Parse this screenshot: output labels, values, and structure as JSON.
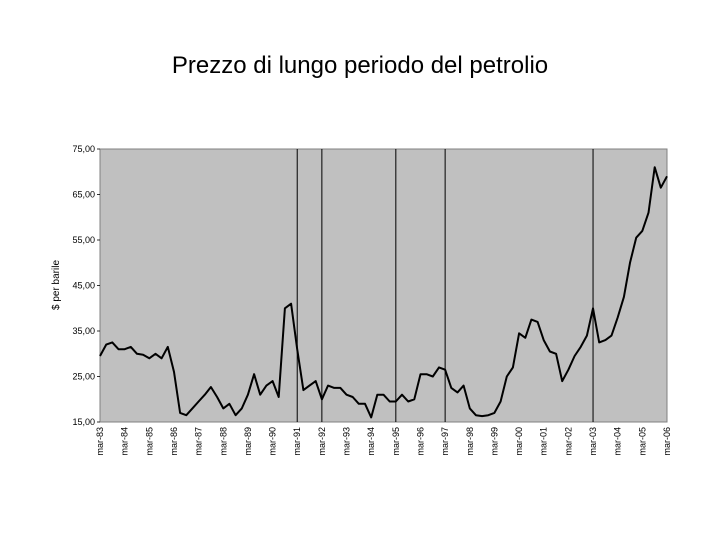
{
  "title": "Prezzo di lungo periodo del petrolio",
  "chart_data": {
    "type": "line",
    "ylabel": "$ per barile",
    "ylim": [
      15,
      75
    ],
    "yticks": [
      "15,00",
      "25,00",
      "35,00",
      "45,00",
      "55,00",
      "65,00",
      "75,00"
    ],
    "x_labels": [
      "mar-83",
      "mar-84",
      "mar-85",
      "mar-86",
      "mar-87",
      "mar-88",
      "mar-89",
      "mar-90",
      "mar-91",
      "mar-92",
      "mar-93",
      "mar-94",
      "mar-95",
      "mar-96",
      "mar-97",
      "mar-98",
      "mar-99",
      "mar-00",
      "mar-01",
      "mar-02",
      "mar-03",
      "mar-04",
      "mar-05",
      "mar-06"
    ],
    "vertical_markers": [
      "mar-91",
      "mar-92",
      "mar-95",
      "mar-97",
      "mar-03"
    ],
    "grid": false,
    "plot_color": "#c0c0c0",
    "line_color": "#000000",
    "series": [
      {
        "values": [
          [
            1983.0,
            29.5
          ],
          [
            1983.25,
            32
          ],
          [
            1983.5,
            32.5
          ],
          [
            1983.75,
            31
          ],
          [
            1984.0,
            31
          ],
          [
            1984.25,
            31.5
          ],
          [
            1984.5,
            30
          ],
          [
            1984.75,
            29.8
          ],
          [
            1985.0,
            29
          ],
          [
            1985.25,
            30
          ],
          [
            1985.5,
            29
          ],
          [
            1985.75,
            31.5
          ],
          [
            1986.0,
            26
          ],
          [
            1986.25,
            17
          ],
          [
            1986.5,
            16.5
          ],
          [
            1986.75,
            18
          ],
          [
            1987.0,
            19.5
          ],
          [
            1987.25,
            21
          ],
          [
            1987.5,
            22.7
          ],
          [
            1987.75,
            20.5
          ],
          [
            1988.0,
            18
          ],
          [
            1988.25,
            19
          ],
          [
            1988.5,
            16.5
          ],
          [
            1988.75,
            18
          ],
          [
            1989.0,
            21
          ],
          [
            1989.25,
            25.5
          ],
          [
            1989.5,
            21
          ],
          [
            1989.75,
            23
          ],
          [
            1990.0,
            24
          ],
          [
            1990.25,
            20.5
          ],
          [
            1990.5,
            40
          ],
          [
            1990.75,
            41
          ],
          [
            1991.0,
            31
          ],
          [
            1991.25,
            22
          ],
          [
            1991.5,
            23
          ],
          [
            1991.75,
            24
          ],
          [
            1992.0,
            20
          ],
          [
            1992.25,
            23
          ],
          [
            1992.5,
            22.5
          ],
          [
            1992.75,
            22.5
          ],
          [
            1993.0,
            21
          ],
          [
            1993.25,
            20.5
          ],
          [
            1993.5,
            19
          ],
          [
            1993.75,
            19
          ],
          [
            1994.0,
            16
          ],
          [
            1994.25,
            21
          ],
          [
            1994.5,
            21
          ],
          [
            1994.75,
            19.5
          ],
          [
            1995.0,
            19.5
          ],
          [
            1995.25,
            21
          ],
          [
            1995.5,
            19.5
          ],
          [
            1995.75,
            20
          ],
          [
            1996.0,
            25.5
          ],
          [
            1996.25,
            25.5
          ],
          [
            1996.5,
            25
          ],
          [
            1996.75,
            27
          ],
          [
            1997.0,
            26.5
          ],
          [
            1997.25,
            22.5
          ],
          [
            1997.5,
            21.5
          ],
          [
            1997.75,
            23
          ],
          [
            1998.0,
            18
          ],
          [
            1998.25,
            16.5
          ],
          [
            1998.5,
            16.3
          ],
          [
            1998.75,
            16.5
          ],
          [
            1999.0,
            17
          ],
          [
            1999.25,
            19.5
          ],
          [
            1999.5,
            25
          ],
          [
            1999.75,
            27
          ],
          [
            2000.0,
            34.5
          ],
          [
            2000.25,
            33.5
          ],
          [
            2000.5,
            37.5
          ],
          [
            2000.75,
            37
          ],
          [
            2001.0,
            33
          ],
          [
            2001.25,
            30.5
          ],
          [
            2001.5,
            30
          ],
          [
            2001.75,
            24
          ],
          [
            2002.0,
            26.5
          ],
          [
            2002.25,
            29.5
          ],
          [
            2002.5,
            31.5
          ],
          [
            2002.75,
            34
          ],
          [
            2003.0,
            40
          ],
          [
            2003.25,
            32.5
          ],
          [
            2003.5,
            33
          ],
          [
            2003.75,
            34
          ],
          [
            2004.0,
            38
          ],
          [
            2004.25,
            42.5
          ],
          [
            2004.5,
            50
          ],
          [
            2004.75,
            55.5
          ],
          [
            2005.0,
            57
          ],
          [
            2005.25,
            61
          ],
          [
            2005.5,
            71
          ],
          [
            2005.75,
            66.5
          ],
          [
            2006.0,
            69
          ]
        ]
      }
    ]
  }
}
